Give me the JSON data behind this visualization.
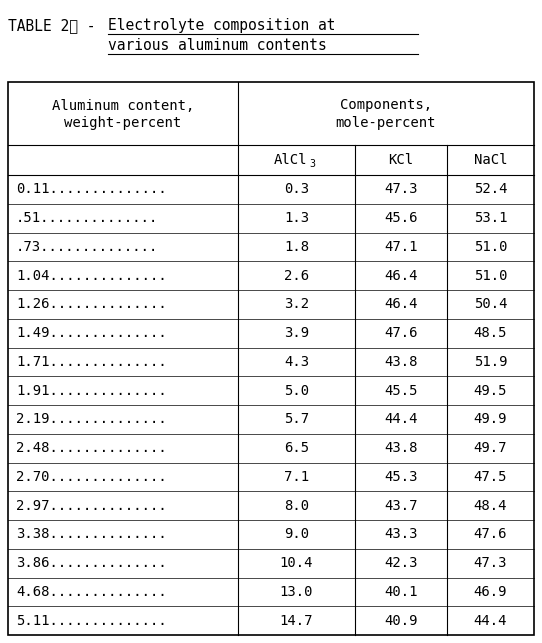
{
  "title_prefix": "TABLE 2⸲ - ",
  "title_underlined": "Electrolyte composition at",
  "title_line2": "various aluminum contents",
  "col_header1_line1": "Aluminum content,",
  "col_header1_line2": "weight-percent",
  "col_header2_line1": "Components,",
  "col_header2_line2": "mole-percent",
  "sub_col1": "AlCl",
  "sub_col1_sub": "3",
  "sub_col2": "KCl",
  "sub_col3": "NaCl",
  "aluminum_content": [
    "0.11",
    ".51",
    ".73",
    "1.04",
    "1.26",
    "1.49",
    "1.71",
    "1.91",
    "2.19",
    "2.48",
    "2.70",
    "2.97",
    "3.38",
    "3.86",
    "4.68",
    "5.11"
  ],
  "alcl3": [
    "0.3",
    "1.3",
    "1.8",
    "2.6",
    "3.2",
    "3.9",
    "4.3",
    "5.0",
    "5.7",
    "6.5",
    "7.1",
    "8.0",
    "9.0",
    "10.4",
    "13.0",
    "14.7"
  ],
  "kcl": [
    "47.3",
    "45.6",
    "47.1",
    "46.4",
    "46.4",
    "47.6",
    "43.8",
    "45.5",
    "44.4",
    "43.8",
    "45.3",
    "43.7",
    "43.3",
    "42.3",
    "40.1",
    "40.9"
  ],
  "nacl": [
    "52.4",
    "53.1",
    "51.0",
    "51.0",
    "50.4",
    "48.5",
    "51.9",
    "49.5",
    "49.9",
    "49.7",
    "47.5",
    "48.4",
    "47.6",
    "47.3",
    "46.9",
    "44.4"
  ],
  "dots_count": 14,
  "bg_color": "#ffffff",
  "text_color": "#000000",
  "font_size": 10,
  "title_font_size": 10.5
}
